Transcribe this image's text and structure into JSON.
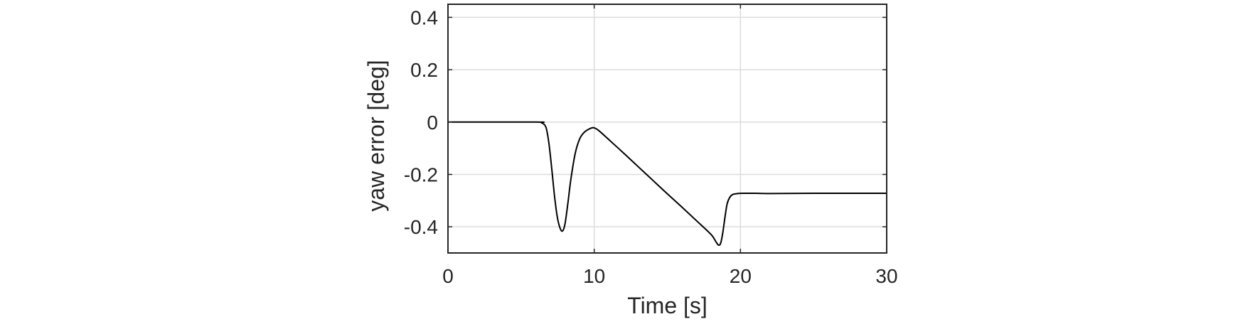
{
  "chart_data": {
    "type": "line",
    "xlabel": "Time [s]",
    "ylabel": "yaw error [deg]",
    "xlim": [
      0,
      30
    ],
    "ylim": [
      -0.5,
      0.45
    ],
    "grid": true,
    "xticks": [
      0,
      10,
      20,
      30
    ],
    "xtick_labels": [
      "0",
      "10",
      "20",
      "30"
    ],
    "yticks": [
      -0.4,
      -0.2,
      0,
      0.2,
      0.4
    ],
    "ytick_labels": [
      "-0.4",
      "-0.2",
      "0",
      "0.2",
      "0.4"
    ],
    "series": [
      {
        "color": "#000000",
        "x": [
          0,
          6.0,
          6.4,
          6.7,
          6.9,
          7.1,
          7.3,
          7.5,
          7.7,
          7.85,
          8.0,
          8.2,
          8.4,
          8.7,
          9.0,
          9.3,
          9.6,
          9.85,
          10.0,
          10.3,
          11.0,
          12.0,
          13.0,
          14.0,
          15.0,
          16.0,
          17.0,
          18.0,
          18.3,
          18.5,
          18.65,
          18.8,
          18.95,
          19.1,
          19.3,
          19.5,
          19.8,
          20.2,
          21.0,
          22.0,
          25.0,
          30.0
        ],
        "y": [
          0,
          0,
          -0.003,
          -0.02,
          -0.08,
          -0.18,
          -0.29,
          -0.37,
          -0.41,
          -0.415,
          -0.39,
          -0.31,
          -0.22,
          -0.12,
          -0.065,
          -0.04,
          -0.028,
          -0.022,
          -0.022,
          -0.032,
          -0.067,
          -0.118,
          -0.17,
          -0.222,
          -0.274,
          -0.325,
          -0.377,
          -0.43,
          -0.455,
          -0.47,
          -0.462,
          -0.42,
          -0.36,
          -0.31,
          -0.285,
          -0.276,
          -0.273,
          -0.272,
          -0.272,
          -0.273,
          -0.272,
          -0.272
        ]
      }
    ]
  }
}
